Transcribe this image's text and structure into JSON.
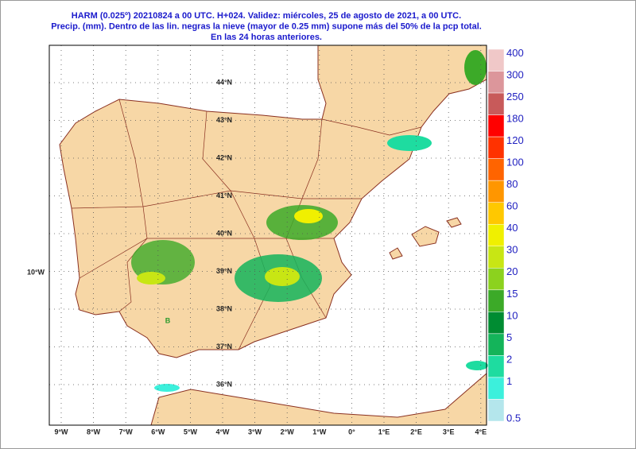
{
  "header": {
    "title_lines": [
      "HARM (0.025º) 20210824 a 00 UTC.  H+024. Validez: miércoles, 25 de agosto de 2021,  a  00 UTC.",
      "Precip. (mm). Dentro de las lin. negras la nieve (mayor de 0.25 mm) supone más del 50% de la pcp total.",
      "En las 24 horas anteriores."
    ]
  },
  "legend": {
    "levels": [
      {
        "label": "400",
        "color": "#f0c8c8"
      },
      {
        "label": "300",
        "color": "#dc969b"
      },
      {
        "label": "250",
        "color": "#c85a5a"
      },
      {
        "label": "180",
        "color": "#ff0000"
      },
      {
        "label": "120",
        "color": "#ff3200"
      },
      {
        "label": "100",
        "color": "#ff6400"
      },
      {
        "label": "80",
        "color": "#ff9600"
      },
      {
        "label": "60",
        "color": "#ffc800"
      },
      {
        "label": "40",
        "color": "#f0f000"
      },
      {
        "label": "30",
        "color": "#c8e614"
      },
      {
        "label": "20",
        "color": "#8cd21e"
      },
      {
        "label": "15",
        "color": "#3caa28"
      },
      {
        "label": "10",
        "color": "#008c32"
      },
      {
        "label": "5",
        "color": "#14b45a"
      },
      {
        "label": "2",
        "color": "#1edca0"
      },
      {
        "label": "1",
        "color": "#3cf0dc"
      },
      {
        "label": "0.5",
        "color": "#b4e6ec"
      }
    ]
  },
  "axes": {
    "lon_labels": [
      "9°W",
      "8°W",
      "7°W",
      "6°W",
      "5°W",
      "4°W",
      "3°W",
      "2°W",
      "1°W",
      "0°",
      "1°E",
      "2°E",
      "3°E",
      "4°E"
    ],
    "lat_labels": [
      "44°N",
      "43°N",
      "42°N",
      "41°N",
      "40°N",
      "39°N",
      "38°N",
      "37°N",
      "36°N"
    ],
    "west_label": "10°W"
  },
  "markers": [
    "B"
  ]
}
